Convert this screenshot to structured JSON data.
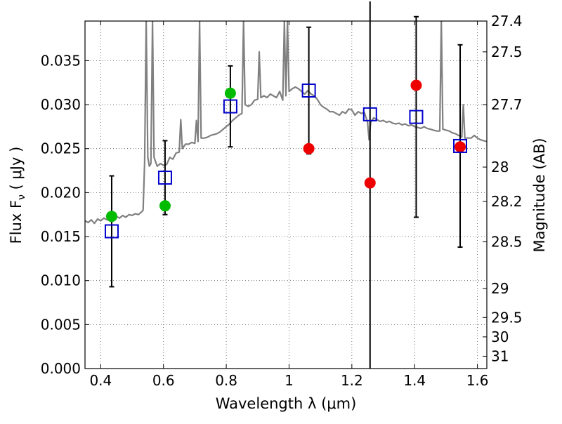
{
  "chart_data": {
    "type": "scatter",
    "xlabel": "Wavelength  λ (μm)",
    "ylabel": "Flux  F",
    "ylabel_sub": "ν",
    "ylabel_unit": " ( μJy )",
    "y2label": "Magnitude (AB)",
    "xlim": [
      0.35,
      1.63
    ],
    "ylim": [
      0.0,
      0.0395
    ],
    "grid": true,
    "x_ticks": [
      0.4,
      0.6,
      0.8,
      1.0,
      1.2,
      1.4,
      1.6
    ],
    "x_tick_labels": [
      "0.4",
      "0.6",
      "0.8",
      "1",
      "1.2",
      "1.4",
      "1.6"
    ],
    "y_ticks": [
      0.0,
      0.005,
      0.01,
      0.015,
      0.02,
      0.025,
      0.03,
      0.035
    ],
    "y_tick_labels": [
      "0.000",
      "0.005",
      "0.010",
      "0.015",
      "0.020",
      "0.025",
      "0.030",
      "0.035"
    ],
    "y2_ticks": [
      {
        "label": "27.4",
        "flux": 0.0395
      },
      {
        "label": "27.5",
        "flux": 0.036
      },
      {
        "label": "27.7",
        "flux": 0.03
      },
      {
        "label": "28",
        "flux": 0.0229
      },
      {
        "label": "28.2",
        "flux": 0.019
      },
      {
        "label": "28.5",
        "flux": 0.0144
      },
      {
        "label": "29",
        "flux": 0.0091
      },
      {
        "label": "29.5",
        "flux": 0.0058
      },
      {
        "label": "30",
        "flux": 0.0036
      },
      {
        "label": "31",
        "flux": 0.0014
      }
    ],
    "series": [
      {
        "kind": "model_spectrum",
        "color": "#808080",
        "points": [
          [
            0.35,
            0.0168
          ],
          [
            0.36,
            0.0166
          ],
          [
            0.37,
            0.0169
          ],
          [
            0.38,
            0.0165
          ],
          [
            0.39,
            0.017
          ],
          [
            0.4,
            0.0168
          ],
          [
            0.41,
            0.0171
          ],
          [
            0.42,
            0.0169
          ],
          [
            0.43,
            0.0172
          ],
          [
            0.44,
            0.017
          ],
          [
            0.45,
            0.0173
          ],
          [
            0.46,
            0.0171
          ],
          [
            0.47,
            0.0174
          ],
          [
            0.48,
            0.0172
          ],
          [
            0.49,
            0.0175
          ],
          [
            0.5,
            0.0174
          ],
          [
            0.51,
            0.0176
          ],
          [
            0.52,
            0.0175
          ],
          [
            0.53,
            0.0178
          ],
          [
            0.535,
            0.018
          ],
          [
            0.54,
            0.0235
          ],
          [
            0.545,
            0.0395
          ],
          [
            0.55,
            0.024
          ],
          [
            0.555,
            0.023
          ],
          [
            0.56,
            0.0233
          ],
          [
            0.565,
            0.0395
          ],
          [
            0.57,
            0.024
          ],
          [
            0.575,
            0.0235
          ],
          [
            0.58,
            0.023
          ],
          [
            0.59,
            0.0233
          ],
          [
            0.6,
            0.0231
          ],
          [
            0.61,
            0.0232
          ],
          [
            0.62,
            0.024
          ],
          [
            0.63,
            0.0238
          ],
          [
            0.64,
            0.0245
          ],
          [
            0.65,
            0.0246
          ],
          [
            0.655,
            0.0283
          ],
          [
            0.66,
            0.025
          ],
          [
            0.67,
            0.0255
          ],
          [
            0.68,
            0.0255
          ],
          [
            0.69,
            0.0257
          ],
          [
            0.7,
            0.0256
          ],
          [
            0.705,
            0.0282
          ],
          [
            0.71,
            0.0258
          ],
          [
            0.715,
            0.0395
          ],
          [
            0.72,
            0.0262
          ],
          [
            0.73,
            0.0262
          ],
          [
            0.74,
            0.0263
          ],
          [
            0.75,
            0.0265
          ],
          [
            0.76,
            0.0266
          ],
          [
            0.77,
            0.0267
          ],
          [
            0.78,
            0.0269
          ],
          [
            0.79,
            0.0272
          ],
          [
            0.8,
            0.0275
          ],
          [
            0.81,
            0.0278
          ],
          [
            0.82,
            0.0282
          ],
          [
            0.83,
            0.0285
          ],
          [
            0.84,
            0.0288
          ],
          [
            0.85,
            0.029
          ],
          [
            0.855,
            0.0395
          ],
          [
            0.86,
            0.03
          ],
          [
            0.87,
            0.0298
          ],
          [
            0.88,
            0.03
          ],
          [
            0.89,
            0.0305
          ],
          [
            0.9,
            0.0306
          ],
          [
            0.905,
            0.036
          ],
          [
            0.91,
            0.0308
          ],
          [
            0.92,
            0.031
          ],
          [
            0.93,
            0.0308
          ],
          [
            0.94,
            0.0312
          ],
          [
            0.95,
            0.031
          ],
          [
            0.96,
            0.0308
          ],
          [
            0.97,
            0.0315
          ],
          [
            0.98,
            0.0305
          ],
          [
            0.985,
            0.0395
          ],
          [
            0.99,
            0.031
          ],
          [
            0.995,
            0.0395
          ],
          [
            1.0,
            0.0315
          ],
          [
            1.01,
            0.0318
          ],
          [
            1.02,
            0.032
          ],
          [
            1.03,
            0.0318
          ],
          [
            1.04,
            0.0315
          ],
          [
            1.05,
            0.0312
          ],
          [
            1.06,
            0.0316
          ],
          [
            1.07,
            0.0312
          ],
          [
            1.08,
            0.031
          ],
          [
            1.09,
            0.0306
          ],
          [
            1.1,
            0.03
          ],
          [
            1.11,
            0.0297
          ],
          [
            1.12,
            0.0295
          ],
          [
            1.13,
            0.0292
          ],
          [
            1.14,
            0.0292
          ],
          [
            1.15,
            0.029
          ],
          [
            1.16,
            0.0288
          ],
          [
            1.17,
            0.0292
          ],
          [
            1.18,
            0.029
          ],
          [
            1.19,
            0.0295
          ],
          [
            1.2,
            0.0294
          ],
          [
            1.21,
            0.0288
          ],
          [
            1.22,
            0.0292
          ],
          [
            1.23,
            0.029
          ],
          [
            1.24,
            0.0291
          ],
          [
            1.25,
            0.028
          ],
          [
            1.255,
            0.026
          ],
          [
            1.26,
            0.028
          ],
          [
            1.27,
            0.0285
          ],
          [
            1.28,
            0.0283
          ],
          [
            1.29,
            0.0281
          ],
          [
            1.3,
            0.0282
          ],
          [
            1.31,
            0.028
          ],
          [
            1.32,
            0.0281
          ],
          [
            1.33,
            0.0279
          ],
          [
            1.34,
            0.0278
          ],
          [
            1.35,
            0.0279
          ],
          [
            1.36,
            0.0277
          ],
          [
            1.37,
            0.0278
          ],
          [
            1.38,
            0.0276
          ],
          [
            1.39,
            0.0277
          ],
          [
            1.4,
            0.0275
          ],
          [
            1.41,
            0.0274
          ],
          [
            1.42,
            0.0273
          ],
          [
            1.43,
            0.0275
          ],
          [
            1.44,
            0.0273
          ],
          [
            1.45,
            0.0272
          ],
          [
            1.46,
            0.0271
          ],
          [
            1.47,
            0.027
          ],
          [
            1.48,
            0.027
          ],
          [
            1.485,
            0.0395
          ],
          [
            1.49,
            0.0272
          ],
          [
            1.5,
            0.0271
          ],
          [
            1.51,
            0.027
          ],
          [
            1.52,
            0.0268
          ],
          [
            1.53,
            0.0267
          ],
          [
            1.54,
            0.0265
          ],
          [
            1.55,
            0.0263
          ],
          [
            1.555,
            0.03
          ],
          [
            1.56,
            0.0262
          ],
          [
            1.57,
            0.0262
          ],
          [
            1.58,
            0.0262
          ],
          [
            1.59,
            0.0265
          ],
          [
            1.6,
            0.0262
          ],
          [
            1.61,
            0.026
          ],
          [
            1.62,
            0.0259
          ],
          [
            1.63,
            0.0258
          ]
        ]
      },
      {
        "kind": "model_points",
        "marker": "open-square",
        "color": "#0000cc",
        "points": [
          {
            "x": 0.435,
            "y": 0.0156,
            "err": 0.0063
          },
          {
            "x": 0.605,
            "y": 0.0217,
            "err": 0.0042
          },
          {
            "x": 0.813,
            "y": 0.0298,
            "err": 0.0046
          },
          {
            "x": 1.063,
            "y": 0.0316,
            "err": 0.0072
          },
          {
            "x": 1.258,
            "y": 0.0289,
            "err": 0.0289
          },
          {
            "x": 1.405,
            "y": 0.0286,
            "err": 0.0114
          },
          {
            "x": 1.545,
            "y": 0.0253,
            "err": 0.0115
          }
        ]
      },
      {
        "kind": "observed_green",
        "marker": "filled-circle",
        "color": "#00bb00",
        "points": [
          {
            "x": 0.435,
            "y": 0.0173
          },
          {
            "x": 0.605,
            "y": 0.0185
          },
          {
            "x": 0.813,
            "y": 0.0313
          }
        ]
      },
      {
        "kind": "observed_red",
        "marker": "filled-circle",
        "color": "#ee0000",
        "points": [
          {
            "x": 1.063,
            "y": 0.025
          },
          {
            "x": 1.258,
            "y": 0.0211
          },
          {
            "x": 1.405,
            "y": 0.0322
          },
          {
            "x": 1.545,
            "y": 0.0252
          }
        ]
      }
    ]
  }
}
